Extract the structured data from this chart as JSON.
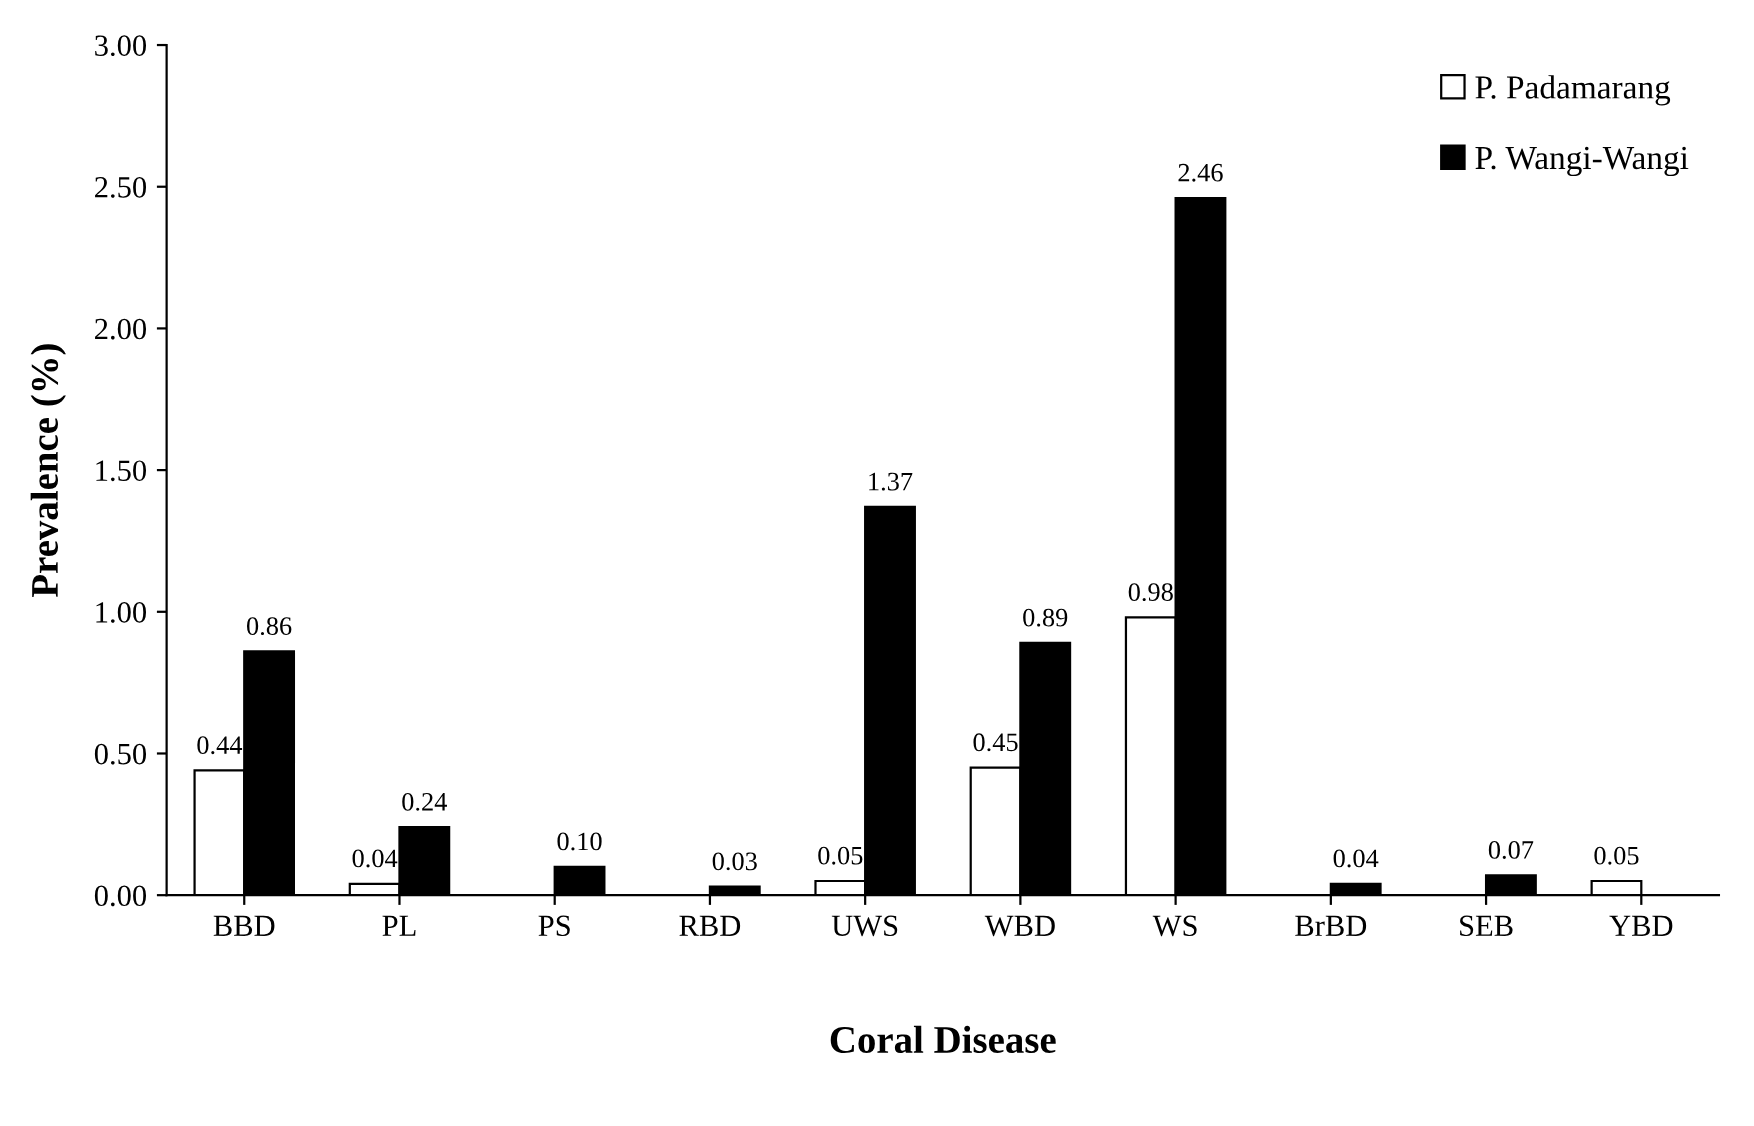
{
  "chart_data": {
    "type": "bar",
    "xlabel": "Coral Disease",
    "ylabel": "Prevalence (%)",
    "categories": [
      "BBD",
      "PL",
      "PS",
      "RBD",
      "UWS",
      "WBD",
      "WS",
      "BrBD",
      "SEB",
      "YBD"
    ],
    "series": [
      {
        "name": "P. Padamarang",
        "color": "#ffffff",
        "values": [
          0.44,
          0.04,
          null,
          null,
          0.05,
          0.45,
          0.98,
          null,
          null,
          0.05
        ],
        "value_labels": [
          "0.44",
          "0.04",
          null,
          null,
          "0.05",
          "0.45",
          "0.98",
          null,
          null,
          "0.05"
        ]
      },
      {
        "name": "P. Wangi-Wangi",
        "color": "#000000",
        "values": [
          0.86,
          0.24,
          0.1,
          0.03,
          1.37,
          0.89,
          2.46,
          0.04,
          0.07,
          null
        ],
        "value_labels": [
          "0.86",
          "0.24",
          "0.10",
          "0.03",
          "1.37",
          "0.89",
          "2.46",
          "0.04",
          "0.07",
          null
        ]
      }
    ],
    "ylim": [
      0,
      3
    ],
    "yticks": [
      {
        "value": 0,
        "label": "0.00"
      },
      {
        "value": 0.5,
        "label": "0.50"
      },
      {
        "value": 1,
        "label": "1.00"
      },
      {
        "value": 1.5,
        "label": "1.50"
      },
      {
        "value": 2,
        "label": "2.00"
      },
      {
        "value": 2.5,
        "label": "2.50"
      },
      {
        "value": 3,
        "label": "3.00"
      }
    ],
    "legend": "top right",
    "grid": false
  }
}
